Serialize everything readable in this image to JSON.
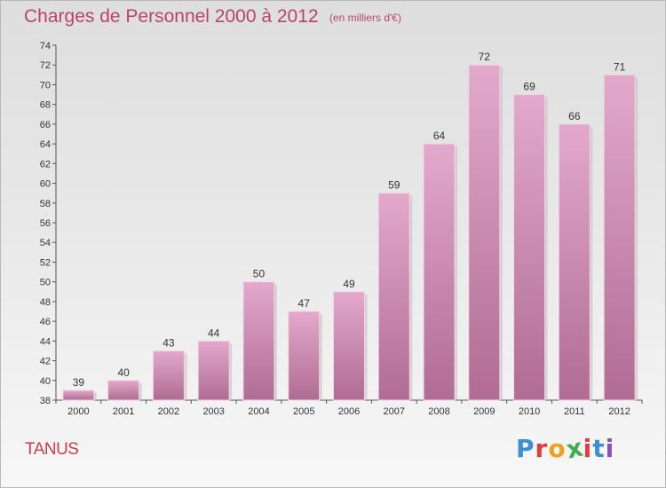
{
  "title": "Charges de Personnel 2000 à 2012",
  "subtitle": "(en milliers d'€)",
  "commune": "TANUS",
  "brand": {
    "text": "Proxiti",
    "colors": [
      "#3a8fd6",
      "#e23c3c",
      "#f0a020",
      "#3cb04a",
      "#e23c3c",
      "#3a8fd6",
      "#8a4fc0"
    ]
  },
  "chart_data": {
    "type": "bar",
    "categories": [
      "2000",
      "2001",
      "2002",
      "2003",
      "2004",
      "2005",
      "2006",
      "2007",
      "2008",
      "2009",
      "2010",
      "2011",
      "2012"
    ],
    "values": [
      39,
      40,
      43,
      44,
      50,
      47,
      49,
      59,
      64,
      72,
      69,
      66,
      71
    ],
    "title": "Charges de Personnel 2000 à 2012",
    "subtitle": "(en milliers d'€)",
    "xlabel": "",
    "ylabel": "",
    "ylim": [
      38,
      74
    ],
    "yticks": [
      38,
      40,
      42,
      44,
      46,
      48,
      50,
      52,
      54,
      56,
      58,
      60,
      62,
      64,
      66,
      68,
      70,
      72,
      74
    ],
    "grid": false,
    "bar_color_top": "#e3a9cc",
    "bar_color_bottom": "#b06c94",
    "label_color": "#333333"
  }
}
